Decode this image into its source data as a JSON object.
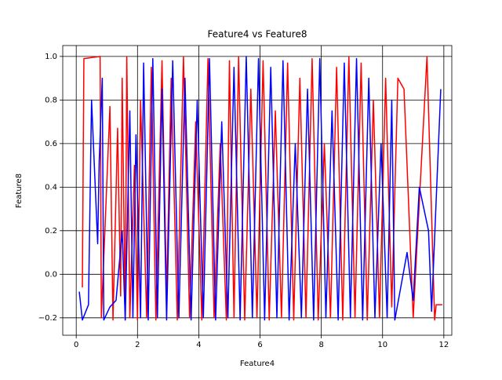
{
  "chart_data": {
    "type": "line",
    "title": "Feature4 vs Feature8",
    "x_label": "Feature4",
    "y_label": "Feature8",
    "xlim": [
      -0.44,
      12.26
    ],
    "ylim": [
      -0.28,
      1.05
    ],
    "xticks": [
      0,
      2,
      4,
      6,
      8,
      10,
      12
    ],
    "yticks": [
      {
        "value": -0.2,
        "label": "−0.2"
      },
      {
        "value": 0,
        "label": "0.0"
      },
      0.2,
      0.4,
      0.6,
      0.8,
      {
        "value": 1,
        "label": "1.0"
      }
    ],
    "grid": true,
    "series": [
      {
        "color": "#ff0000",
        "x": [
          0.2,
          0.25,
          0.78,
          0.82,
          1.1,
          1.2,
          1.35,
          1.45,
          1.5,
          1.6,
          1.65,
          1.75,
          1.9,
          2.0,
          2.1,
          2.3,
          2.45,
          2.6,
          2.8,
          2.95,
          3.1,
          3.3,
          3.5,
          3.7,
          3.9,
          4.1,
          4.3,
          4.5,
          4.7,
          4.9,
          5.0,
          5.15,
          5.3,
          5.5,
          5.7,
          5.9,
          6.1,
          6.3,
          6.5,
          6.7,
          6.9,
          7.1,
          7.3,
          7.5,
          7.7,
          7.9,
          8.1,
          8.3,
          8.5,
          8.7,
          8.9,
          9.1,
          9.3,
          9.5,
          9.7,
          9.9,
          10.1,
          10.3,
          10.5,
          10.7,
          11.0,
          11.45,
          11.7,
          11.75,
          11.95
        ],
        "values": [
          -0.06,
          0.99,
          1.0,
          -0.2,
          0.77,
          -0.21,
          0.67,
          -0.1,
          0.9,
          -0.21,
          1.0,
          -0.2,
          0.5,
          -0.21,
          0.8,
          -0.2,
          0.95,
          -0.21,
          0.98,
          -0.1,
          0.9,
          -0.21,
          1.0,
          -0.2,
          0.7,
          -0.21,
          0.99,
          -0.2,
          0.6,
          -0.21,
          0.98,
          -0.2,
          1.0,
          -0.21,
          0.85,
          -0.2,
          0.98,
          -0.21,
          0.75,
          -0.2,
          0.97,
          -0.21,
          0.9,
          -0.2,
          0.99,
          -0.21,
          0.6,
          -0.2,
          0.95,
          -0.21,
          1.0,
          -0.2,
          0.97,
          -0.21,
          0.8,
          -0.2,
          0.9,
          -0.15,
          0.9,
          0.85,
          -0.2,
          1.0,
          -0.21,
          -0.14,
          -0.14
        ]
      },
      {
        "color": "#0000ff",
        "x": [
          0.1,
          0.2,
          0.4,
          0.5,
          0.7,
          0.75,
          0.85,
          0.9,
          1.1,
          1.3,
          1.5,
          1.6,
          1.75,
          1.85,
          1.95,
          2.1,
          2.2,
          2.35,
          2.5,
          2.65,
          2.8,
          2.95,
          3.15,
          3.35,
          3.55,
          3.75,
          3.95,
          4.15,
          4.35,
          4.55,
          4.75,
          4.95,
          5.15,
          5.35,
          5.55,
          5.75,
          5.95,
          6.15,
          6.35,
          6.55,
          6.75,
          6.95,
          7.15,
          7.35,
          7.55,
          7.75,
          7.95,
          8.15,
          8.35,
          8.55,
          8.75,
          8.95,
          9.15,
          9.35,
          9.55,
          9.75,
          9.95,
          10.15,
          10.3,
          10.4,
          10.8,
          11.0,
          11.2,
          11.5,
          11.6,
          11.9
        ],
        "values": [
          -0.08,
          -0.21,
          -0.14,
          0.8,
          0.14,
          0.52,
          0.9,
          -0.21,
          -0.15,
          -0.12,
          0.2,
          -0.21,
          0.75,
          -0.2,
          0.64,
          -0.2,
          0.97,
          -0.21,
          0.99,
          -0.2,
          0.85,
          -0.21,
          0.98,
          -0.2,
          0.9,
          -0.21,
          0.8,
          -0.2,
          0.99,
          -0.21,
          0.7,
          -0.2,
          0.95,
          -0.21,
          1.0,
          -0.2,
          0.99,
          -0.21,
          0.95,
          -0.2,
          0.98,
          -0.21,
          0.6,
          -0.2,
          0.85,
          -0.21,
          0.99,
          -0.2,
          0.75,
          -0.21,
          0.97,
          -0.2,
          0.99,
          -0.21,
          0.9,
          -0.2,
          0.6,
          -0.2,
          0.8,
          -0.21,
          0.1,
          -0.12,
          0.4,
          0.2,
          -0.17,
          0.85
        ]
      }
    ]
  }
}
